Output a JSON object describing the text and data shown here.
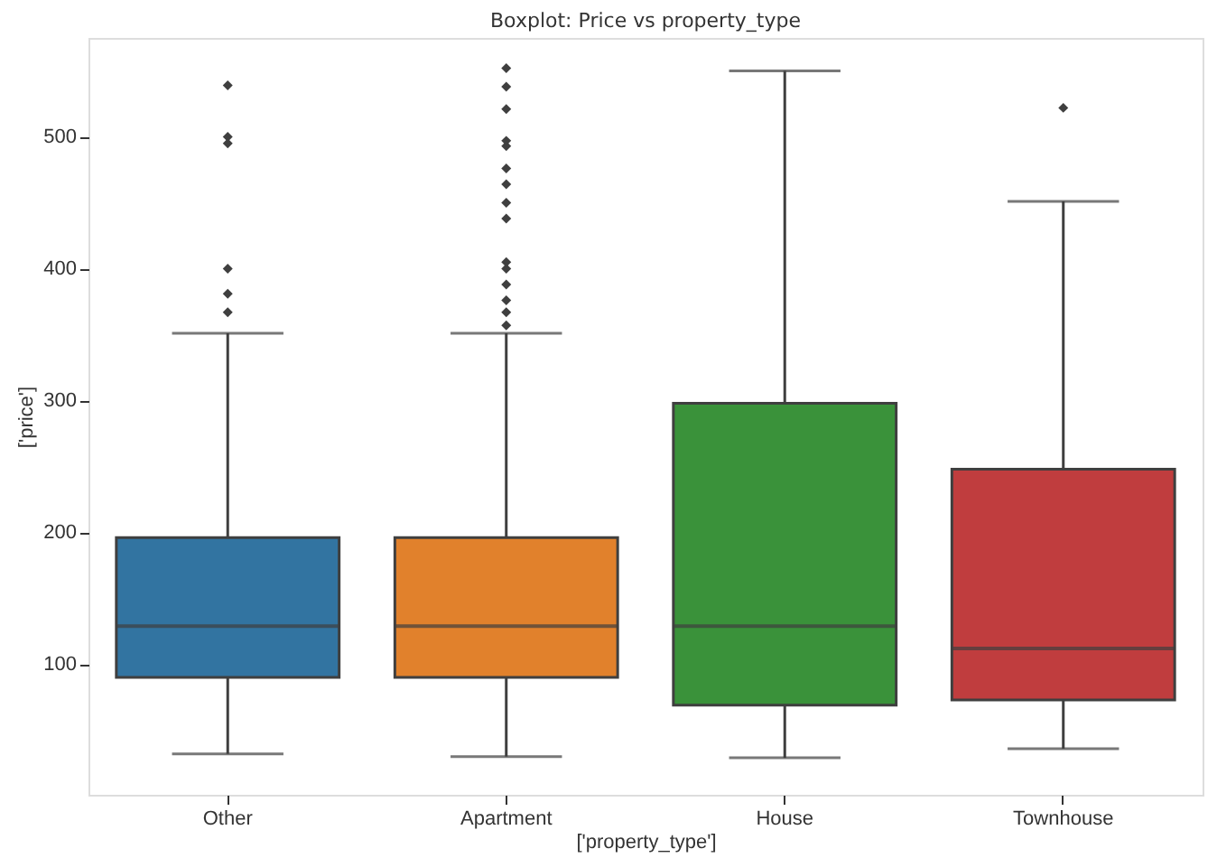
{
  "chart_data": {
    "type": "box",
    "title": "Boxplot: Price vs property_type",
    "xlabel": "['property_type']",
    "ylabel": "['price']",
    "categories": [
      "Other",
      "Apartment",
      "House",
      "Townhouse"
    ],
    "colors": [
      "#3274a1",
      "#e1812c",
      "#3a923a",
      "#c03d3e"
    ],
    "boxes": [
      {
        "low": 32,
        "q1": 90,
        "median": 129,
        "q3": 196,
        "high": 351,
        "outliers": [
          367,
          381,
          400,
          495,
          500,
          539
        ]
      },
      {
        "low": 30,
        "q1": 90,
        "median": 129,
        "q3": 196,
        "high": 351,
        "outliers": [
          357,
          367,
          376,
          388,
          400,
          405,
          438,
          450,
          464,
          476,
          493,
          497,
          521,
          538,
          552
        ]
      },
      {
        "low": 29,
        "q1": 69,
        "median": 129,
        "q3": 298,
        "high": 550
      },
      {
        "low": 36,
        "q1": 73,
        "median": 112,
        "q3": 248,
        "high": 451,
        "outliers": [
          522
        ]
      }
    ],
    "ylim": [
      1,
      575
    ],
    "yticks": [
      100,
      200,
      300,
      400,
      500
    ],
    "grid": false
  }
}
